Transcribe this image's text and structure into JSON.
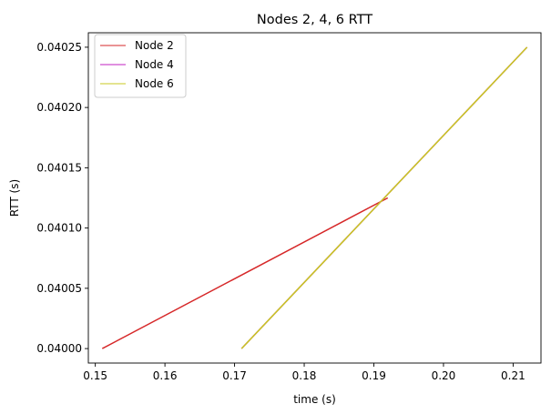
{
  "chart_data": {
    "type": "line",
    "title": "Nodes 2, 4, 6 RTT",
    "xlabel": "time (s)",
    "ylabel": "RTT (s)",
    "xlim": [
      0.149,
      0.214
    ],
    "ylim": [
      0.039988,
      0.040262
    ],
    "x_ticks": [
      0.15,
      0.16,
      0.17,
      0.18,
      0.19,
      0.2,
      0.21
    ],
    "x_tick_labels": [
      "0.15",
      "0.16",
      "0.17",
      "0.18",
      "0.19",
      "0.20",
      "0.21"
    ],
    "y_ticks": [
      0.04,
      0.04005,
      0.0401,
      0.04015,
      0.0402,
      0.04025
    ],
    "y_tick_labels": [
      "0.04000",
      "0.04005",
      "0.04010",
      "0.04015",
      "0.04020",
      "0.04025"
    ],
    "grid": false,
    "legend_position": "top-left",
    "series": [
      {
        "name": "Node 2",
        "color": "#d62728",
        "x": [
          0.151,
          0.192
        ],
        "y": [
          0.04,
          0.040125
        ]
      },
      {
        "name": "Node 4",
        "color": "#c020c0",
        "x": [
          0.171,
          0.212
        ],
        "y": [
          0.04,
          0.04025
        ]
      },
      {
        "name": "Node 6",
        "color": "#c8c820",
        "x": [
          0.171,
          0.212
        ],
        "y": [
          0.04,
          0.04025
        ]
      }
    ]
  }
}
